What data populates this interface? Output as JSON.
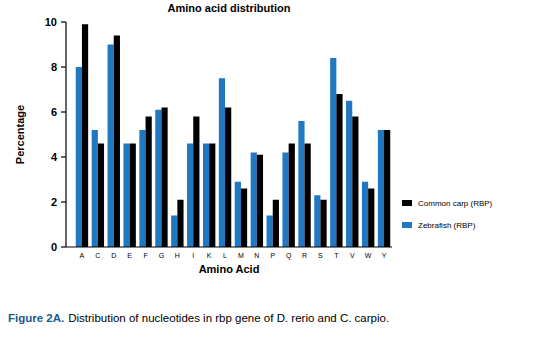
{
  "chart_data": {
    "type": "bar",
    "title": "Amino acid distribution",
    "x_label": "Amino Acid",
    "y_label": "Percentage",
    "categories": [
      "A",
      "C",
      "D",
      "E",
      "F",
      "G",
      "H",
      "I",
      "K",
      "L",
      "M",
      "N",
      "P",
      "Q",
      "R",
      "S",
      "T",
      "V",
      "W",
      "Y"
    ],
    "series": [
      {
        "name": "Zebrafish (RBP)",
        "color": "#1f78c1",
        "values": [
          8.0,
          5.2,
          9.0,
          4.6,
          5.2,
          6.1,
          1.4,
          4.6,
          4.6,
          7.5,
          2.9,
          4.2,
          1.4,
          4.2,
          5.6,
          2.3,
          8.4,
          6.5,
          2.9,
          5.2
        ]
      },
      {
        "name": "Common carp (RBP)",
        "color": "#000000",
        "values": [
          9.9,
          4.6,
          9.4,
          4.6,
          5.8,
          6.2,
          2.1,
          5.8,
          4.6,
          6.2,
          2.6,
          4.1,
          2.1,
          4.6,
          4.6,
          2.1,
          6.8,
          5.8,
          2.6,
          5.2
        ]
      }
    ],
    "ylim": [
      0,
      10
    ],
    "yticks": [
      0,
      2,
      4,
      6,
      8,
      10
    ],
    "grid": false,
    "legend": "right",
    "caption_label": "Figure 2A.",
    "caption": "Distribution of nucleotides in rbp gene of D. rerio and C. carpio."
  }
}
